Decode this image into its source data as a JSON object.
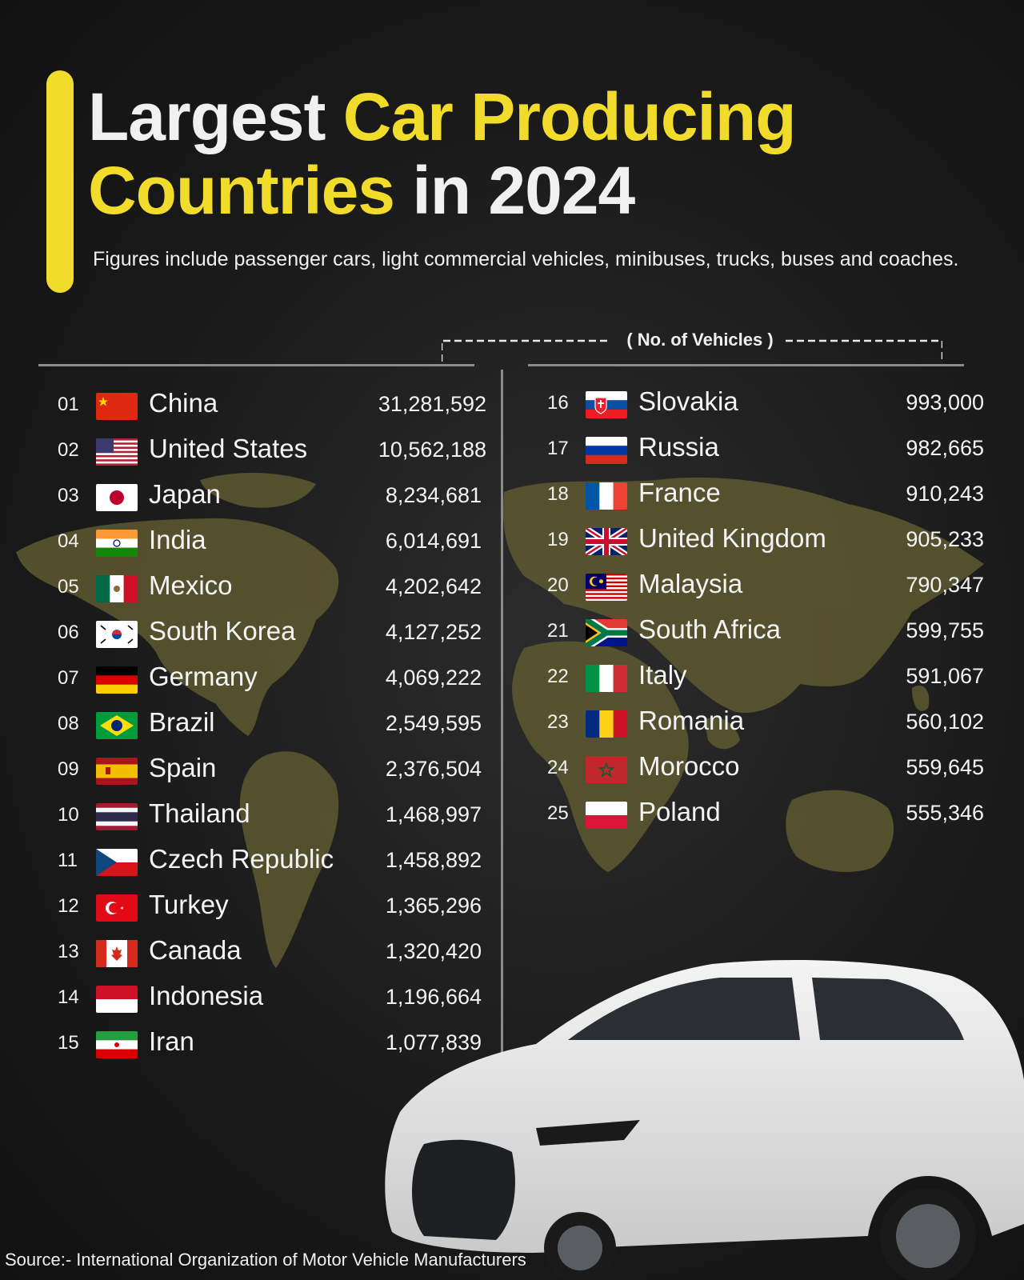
{
  "title": {
    "part1": "Largest ",
    "part2": "Car Producing",
    "part3": "Countries",
    "part4": " in 2024"
  },
  "subtitle": "Figures include passenger cars, light commercial vehicles, minibuses, trucks, buses and coaches.",
  "units_label": "( No. of Vehicles )",
  "source": "Source:- International Organization of Motor Vehicle Manufacturers",
  "colors": {
    "accent": "#f2dc2b",
    "background": "#1b1b1b",
    "map": "#6b6333",
    "text": "#f2f2f2"
  },
  "chart_data": {
    "type": "table",
    "columns": [
      "rank",
      "country",
      "vehicles"
    ],
    "rows": [
      {
        "rank": "01",
        "country": "China",
        "vehicles": "31,281,592",
        "flag": "china-flag-icon"
      },
      {
        "rank": "02",
        "country": "United States",
        "vehicles": "10,562,188",
        "flag": "usa-flag-icon"
      },
      {
        "rank": "03",
        "country": "Japan",
        "vehicles": "8,234,681",
        "flag": "japan-flag-icon"
      },
      {
        "rank": "04",
        "country": "India",
        "vehicles": "6,014,691",
        "flag": "india-flag-icon"
      },
      {
        "rank": "05",
        "country": "Mexico",
        "vehicles": "4,202,642",
        "flag": "mexico-flag-icon"
      },
      {
        "rank": "06",
        "country": "South Korea",
        "vehicles": "4,127,252",
        "flag": "south-korea-flag-icon"
      },
      {
        "rank": "07",
        "country": "Germany",
        "vehicles": "4,069,222",
        "flag": "germany-flag-icon"
      },
      {
        "rank": "08",
        "country": "Brazil",
        "vehicles": "2,549,595",
        "flag": "brazil-flag-icon"
      },
      {
        "rank": "09",
        "country": "Spain",
        "vehicles": "2,376,504",
        "flag": "spain-flag-icon"
      },
      {
        "rank": "10",
        "country": "Thailand",
        "vehicles": "1,468,997",
        "flag": "thailand-flag-icon"
      },
      {
        "rank": "11",
        "country": "Czech Republic",
        "vehicles": "1,458,892",
        "flag": "czech-flag-icon"
      },
      {
        "rank": "12",
        "country": "Turkey",
        "vehicles": "1,365,296",
        "flag": "turkey-flag-icon"
      },
      {
        "rank": "13",
        "country": "Canada",
        "vehicles": "1,320,420",
        "flag": "canada-flag-icon"
      },
      {
        "rank": "14",
        "country": "Indonesia",
        "vehicles": "1,196,664",
        "flag": "indonesia-flag-icon"
      },
      {
        "rank": "15",
        "country": "Iran",
        "vehicles": "1,077,839",
        "flag": "iran-flag-icon"
      },
      {
        "rank": "16",
        "country": "Slovakia",
        "vehicles": "993,000",
        "flag": "slovakia-flag-icon"
      },
      {
        "rank": "17",
        "country": "Russia",
        "vehicles": "982,665",
        "flag": "russia-flag-icon"
      },
      {
        "rank": "18",
        "country": "France",
        "vehicles": "910,243",
        "flag": "france-flag-icon"
      },
      {
        "rank": "19",
        "country": "United Kingdom",
        "vehicles": "905,233",
        "flag": "uk-flag-icon"
      },
      {
        "rank": "20",
        "country": "Malaysia",
        "vehicles": "790,347",
        "flag": "malaysia-flag-icon"
      },
      {
        "rank": "21",
        "country": "South Africa",
        "vehicles": "599,755",
        "flag": "south-africa-flag-icon"
      },
      {
        "rank": "22",
        "country": "Italy",
        "vehicles": "591,067",
        "flag": "italy-flag-icon"
      },
      {
        "rank": "23",
        "country": "Romania",
        "vehicles": "560,102",
        "flag": "romania-flag-icon"
      },
      {
        "rank": "24",
        "country": "Morocco",
        "vehicles": "559,645",
        "flag": "morocco-flag-icon"
      },
      {
        "rank": "25",
        "country": "Poland",
        "vehicles": "555,346",
        "flag": "poland-flag-icon"
      }
    ]
  }
}
